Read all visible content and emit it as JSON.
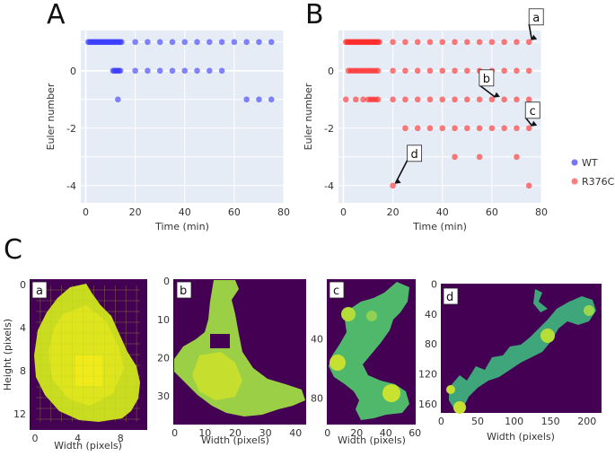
{
  "panel_labels": [
    "A",
    "B",
    "C"
  ],
  "chart_data": [
    {
      "type": "scatter",
      "panel": "A",
      "xlabel": "Time (min)",
      "ylabel": "Euler number",
      "xlim": [
        -2,
        80
      ],
      "ylim": [
        -4.6,
        1.4
      ],
      "xticks": [
        0,
        20,
        40,
        60,
        80
      ],
      "yticks": [
        0,
        -2,
        -4
      ],
      "grid": true,
      "series": [
        {
          "name": "WT",
          "color": "#3b3bff",
          "points": [
            [
              1,
              1
            ],
            [
              1.5,
              1
            ],
            [
              2,
              1
            ],
            [
              2.5,
              1
            ],
            [
              3,
              1
            ],
            [
              3.5,
              1
            ],
            [
              4,
              1
            ],
            [
              4.5,
              1
            ],
            [
              5,
              1
            ],
            [
              5.5,
              1
            ],
            [
              6,
              1
            ],
            [
              6.5,
              1
            ],
            [
              7,
              1
            ],
            [
              7.5,
              1
            ],
            [
              8,
              1
            ],
            [
              8.5,
              1
            ],
            [
              9,
              1
            ],
            [
              9.5,
              1
            ],
            [
              10,
              1
            ],
            [
              10.5,
              1
            ],
            [
              11,
              1
            ],
            [
              11.5,
              1
            ],
            [
              12,
              1
            ],
            [
              12.5,
              1
            ],
            [
              13,
              1
            ],
            [
              13.5,
              1
            ],
            [
              14,
              1
            ],
            [
              14.5,
              1
            ],
            [
              20,
              1
            ],
            [
              25,
              1
            ],
            [
              30,
              1
            ],
            [
              35,
              1
            ],
            [
              40,
              1
            ],
            [
              45,
              1
            ],
            [
              50,
              1
            ],
            [
              55,
              1
            ],
            [
              60,
              1
            ],
            [
              65,
              1
            ],
            [
              70,
              1
            ],
            [
              75,
              1
            ],
            [
              11,
              0
            ],
            [
              11.5,
              0
            ],
            [
              12,
              0
            ],
            [
              12.5,
              0
            ],
            [
              13,
              0
            ],
            [
              13.5,
              0
            ],
            [
              14,
              0
            ],
            [
              20,
              0
            ],
            [
              25,
              0
            ],
            [
              30,
              0
            ],
            [
              35,
              0
            ],
            [
              40,
              0
            ],
            [
              45,
              0
            ],
            [
              50,
              0
            ],
            [
              55,
              0
            ],
            [
              13,
              -1
            ],
            [
              65,
              -1
            ],
            [
              70,
              -1
            ],
            [
              75,
              -1
            ]
          ]
        }
      ]
    },
    {
      "type": "scatter",
      "panel": "B",
      "xlabel": "Time (min)",
      "ylabel": "Euler number",
      "xlim": [
        -2,
        80
      ],
      "ylim": [
        -4.6,
        1.4
      ],
      "xticks": [
        0,
        20,
        40,
        60,
        80
      ],
      "yticks": [
        0,
        -2,
        -4
      ],
      "grid": true,
      "series": [
        {
          "name": "R376C",
          "color": "#ff2a2a",
          "points": [
            [
              1,
              1
            ],
            [
              1.5,
              1
            ],
            [
              2,
              1
            ],
            [
              2.5,
              1
            ],
            [
              3,
              1
            ],
            [
              3.5,
              1
            ],
            [
              4,
              1
            ],
            [
              4.5,
              1
            ],
            [
              5,
              1
            ],
            [
              5.5,
              1
            ],
            [
              6,
              1
            ],
            [
              6.5,
              1
            ],
            [
              7,
              1
            ],
            [
              7.5,
              1
            ],
            [
              8,
              1
            ],
            [
              8.5,
              1
            ],
            [
              9,
              1
            ],
            [
              9.5,
              1
            ],
            [
              10,
              1
            ],
            [
              10.5,
              1
            ],
            [
              11,
              1
            ],
            [
              11.5,
              1
            ],
            [
              12,
              1
            ],
            [
              12.5,
              1
            ],
            [
              13,
              1
            ],
            [
              13.5,
              1
            ],
            [
              14,
              1
            ],
            [
              14.5,
              1
            ],
            [
              20,
              1
            ],
            [
              25,
              1
            ],
            [
              30,
              1
            ],
            [
              35,
              1
            ],
            [
              40,
              1
            ],
            [
              45,
              1
            ],
            [
              50,
              1
            ],
            [
              55,
              1
            ],
            [
              60,
              1
            ],
            [
              65,
              1
            ],
            [
              70,
              1
            ],
            [
              75,
              1
            ],
            [
              2,
              0
            ],
            [
              3,
              0
            ],
            [
              4,
              0
            ],
            [
              5,
              0
            ],
            [
              6,
              0
            ],
            [
              7,
              0
            ],
            [
              8,
              0
            ],
            [
              9,
              0
            ],
            [
              10,
              0
            ],
            [
              11,
              0
            ],
            [
              12,
              0
            ],
            [
              13,
              0
            ],
            [
              14,
              0
            ],
            [
              20,
              0
            ],
            [
              25,
              0
            ],
            [
              30,
              0
            ],
            [
              35,
              0
            ],
            [
              40,
              0
            ],
            [
              45,
              0
            ],
            [
              50,
              0
            ],
            [
              55,
              0
            ],
            [
              60,
              0
            ],
            [
              65,
              0
            ],
            [
              70,
              0
            ],
            [
              75,
              0
            ],
            [
              1,
              -1
            ],
            [
              5,
              -1
            ],
            [
              8,
              -1
            ],
            [
              10,
              -1
            ],
            [
              11,
              -1
            ],
            [
              12,
              -1
            ],
            [
              13,
              -1
            ],
            [
              14,
              -1
            ],
            [
              20,
              -1
            ],
            [
              25,
              -1
            ],
            [
              30,
              -1
            ],
            [
              35,
              -1
            ],
            [
              40,
              -1
            ],
            [
              45,
              -1
            ],
            [
              50,
              -1
            ],
            [
              55,
              -1
            ],
            [
              60,
              -1
            ],
            [
              65,
              -1
            ],
            [
              70,
              -1
            ],
            [
              75,
              -1
            ],
            [
              25,
              -2
            ],
            [
              30,
              -2
            ],
            [
              35,
              -2
            ],
            [
              40,
              -2
            ],
            [
              45,
              -2
            ],
            [
              50,
              -2
            ],
            [
              55,
              -2
            ],
            [
              60,
              -2
            ],
            [
              65,
              -2
            ],
            [
              70,
              -2
            ],
            [
              75,
              -2
            ],
            [
              45,
              -3
            ],
            [
              55,
              -3
            ],
            [
              70,
              -3
            ],
            [
              20,
              -4
            ],
            [
              75,
              -4
            ]
          ]
        }
      ],
      "annotations": [
        {
          "label": "a",
          "x": 75,
          "y": 1
        },
        {
          "label": "b",
          "x": 60,
          "y": -1
        },
        {
          "label": "c",
          "x": 75,
          "y": -2
        },
        {
          "label": "d",
          "x": 20,
          "y": -4
        }
      ]
    },
    {
      "type": "heatmap",
      "panel": "C-a",
      "tag": "a",
      "xlabel": "Width (pixels)",
      "ylabel": "Height (pixels)",
      "xticks": [
        0,
        4,
        8
      ],
      "yticks": [
        0,
        4,
        8,
        12
      ],
      "xlim": [
        -0.5,
        10.5
      ],
      "ylim": [
        -0.5,
        13.5
      ]
    },
    {
      "type": "heatmap",
      "panel": "C-b",
      "tag": "b",
      "xlabel": "Width (pixels)",
      "ylabel": "",
      "xticks": [
        0,
        10,
        20,
        30,
        40
      ],
      "yticks": [
        0,
        10,
        20,
        30
      ],
      "xlim": [
        -0.5,
        43.5
      ],
      "ylim": [
        -0.5,
        37.5
      ]
    },
    {
      "type": "heatmap",
      "panel": "C-c",
      "tag": "c",
      "xlabel": "Width (pixels)",
      "ylabel": "",
      "xticks": [
        0,
        20,
        40,
        60
      ],
      "yticks": [
        40,
        80
      ],
      "xlim": [
        -0.5,
        60.5
      ],
      "ylim": [
        -0.5,
        98
      ]
    },
    {
      "type": "heatmap",
      "panel": "C-d",
      "tag": "d",
      "xlabel": "Width (pixels)",
      "ylabel": "",
      "xticks": [
        0,
        50,
        100,
        150,
        200
      ],
      "yticks": [
        0,
        40,
        80,
        120,
        160
      ],
      "xlim": [
        -0.5,
        220
      ],
      "ylim": [
        -0.5,
        172
      ]
    }
  ],
  "colors": {
    "plot_bg": "#e5ecf6",
    "heat_bg": "#440154",
    "wt": "#3b3bff",
    "r376c": "#ff2a2a"
  }
}
